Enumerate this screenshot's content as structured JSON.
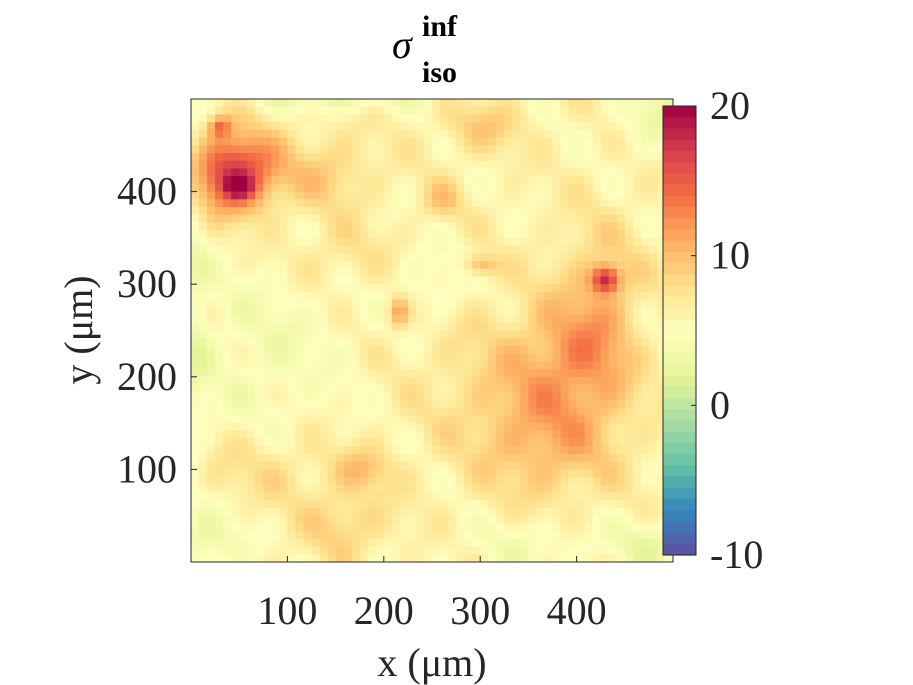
{
  "chart_data": {
    "type": "heatmap",
    "title": {
      "symbol": "σ",
      "superscript": "inf",
      "subscript": "iso"
    },
    "xlabel": "x (μm)",
    "ylabel": "y (μm)",
    "xlim": [
      0,
      500
    ],
    "ylim": [
      0,
      500
    ],
    "xticks": [
      100,
      200,
      300,
      400
    ],
    "yticks": [
      100,
      200,
      300,
      400
    ],
    "clim": [
      -10,
      20
    ],
    "colorbar_ticks": [
      -10,
      0,
      10,
      20
    ],
    "colormap": "Spectral (reversed)",
    "colormap_stops": [
      "#5e4fa2",
      "#3288bd",
      "#66c2a5",
      "#abdda4",
      "#e6f598",
      "#ffffbf",
      "#fee08b",
      "#fdae61",
      "#f46d43",
      "#d53e4f",
      "#9e0142"
    ],
    "background_level": 6,
    "features": [
      {
        "x": 45,
        "y": 420,
        "sx": 30,
        "sy": 30,
        "v": 12
      },
      {
        "x": 50,
        "y": 405,
        "sx": 10,
        "sy": 8,
        "v": 7
      },
      {
        "x": 30,
        "y": 470,
        "sx": 8,
        "sy": 8,
        "v": 6
      },
      {
        "x": 430,
        "y": 305,
        "sx": 10,
        "sy": 10,
        "v": 10
      },
      {
        "x": 425,
        "y": 260,
        "sx": 35,
        "sy": 70,
        "v": 4
      },
      {
        "x": 470,
        "y": 250,
        "sx": 20,
        "sy": 40,
        "v": -1
      },
      {
        "x": 215,
        "y": 270,
        "sx": 8,
        "sy": 12,
        "v": 6
      },
      {
        "x": 300,
        "y": 320,
        "sx": 12,
        "sy": 8,
        "v": 5
      },
      {
        "x": 260,
        "y": 390,
        "sx": 15,
        "sy": 15,
        "v": 3
      },
      {
        "x": 140,
        "y": 420,
        "sx": 35,
        "sy": 30,
        "v": 3
      },
      {
        "x": 370,
        "y": 130,
        "sx": 50,
        "sy": 45,
        "v": 4
      },
      {
        "x": 390,
        "y": 220,
        "sx": 40,
        "sy": 40,
        "v": 3
      },
      {
        "x": 320,
        "y": 200,
        "sx": 60,
        "sy": 60,
        "v": 2
      },
      {
        "x": 160,
        "y": 40,
        "sx": 30,
        "sy": 25,
        "v": 3
      },
      {
        "x": 80,
        "y": 100,
        "sx": 70,
        "sy": 30,
        "v": 2
      },
      {
        "x": 180,
        "y": 100,
        "sx": 20,
        "sy": 15,
        "v": 3
      },
      {
        "x": 150,
        "y": 330,
        "sx": 40,
        "sy": 25,
        "v": 2
      },
      {
        "x": 300,
        "y": 470,
        "sx": 30,
        "sy": 20,
        "v": 3
      },
      {
        "x": 80,
        "y": 230,
        "sx": 60,
        "sy": 80,
        "v": -2
      },
      {
        "x": 250,
        "y": 300,
        "sx": 30,
        "sy": 30,
        "v": -2
      },
      {
        "x": 20,
        "y": 20,
        "sx": 25,
        "sy": 25,
        "v": -3
      },
      {
        "x": 480,
        "y": 20,
        "sx": 30,
        "sy": 20,
        "v": -3
      },
      {
        "x": 480,
        "y": 480,
        "sx": 25,
        "sy": 25,
        "v": -3
      },
      {
        "x": 150,
        "y": 500,
        "sx": 60,
        "sy": 10,
        "v": -3
      },
      {
        "x": 5,
        "y": 250,
        "sx": 10,
        "sy": 150,
        "v": -2
      },
      {
        "x": 350,
        "y": 20,
        "sx": 50,
        "sy": 20,
        "v": -2
      }
    ]
  }
}
